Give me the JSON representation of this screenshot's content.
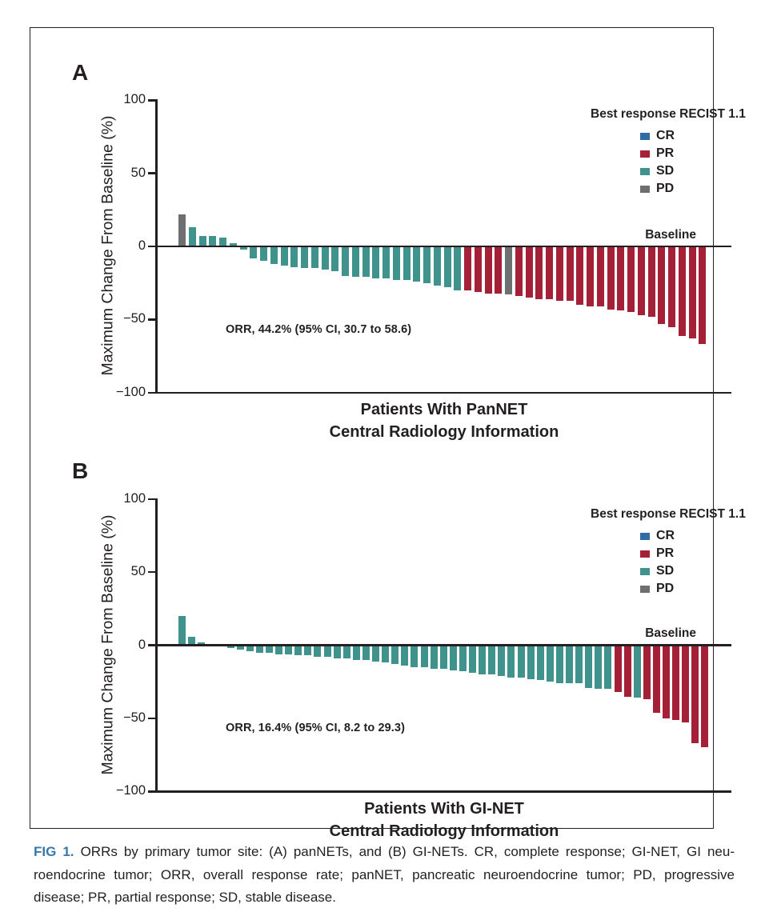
{
  "colors": {
    "CR": "#2E6DA4",
    "PR": "#A32036",
    "SD": "#3F938C",
    "PD": "#6E6F71",
    "axis": "#231F20",
    "fig_label_blue": "#3878A8"
  },
  "chart_data": [
    {
      "type": "bar",
      "subtype": "waterfall",
      "panel_label": "A",
      "ylabel": "Maximum Change From Baseline (%)",
      "title_lines": [
        "Patients With PanNET",
        "Central Radiology Information"
      ],
      "ylim": [
        -100,
        100
      ],
      "y_ticks": [
        100,
        50,
        0,
        -50,
        -100
      ],
      "y_tick_labels": [
        "100",
        "50",
        "0",
        "−50",
        "−100"
      ],
      "baseline_annotation": "Baseline",
      "orr_annotation": "ORR, 44.2% (95% CI, 30.7 to 58.6)",
      "legend": {
        "title": "Best response RECIST 1.1",
        "items": [
          "CR",
          "PR",
          "SD",
          "PD"
        ]
      },
      "values": [
        22,
        13,
        7,
        7,
        6,
        2,
        -2,
        -8,
        -10,
        -12,
        -13,
        -14,
        -15,
        -15,
        -16,
        -17,
        -20,
        -21,
        -21,
        -22,
        -22,
        -23,
        -23,
        -24,
        -25,
        -27,
        -28,
        -30,
        -30,
        -31,
        -32,
        -32,
        -33,
        -34,
        -35,
        -36,
        -36,
        -37,
        -37,
        -40,
        -41,
        -41,
        -43,
        -44,
        -45,
        -47,
        -48,
        -53,
        -55,
        -61,
        -63,
        -67
      ],
      "responses": [
        "PD",
        "SD",
        "SD",
        "SD",
        "SD",
        "SD",
        "SD",
        "SD",
        "SD",
        "SD",
        "SD",
        "SD",
        "SD",
        "SD",
        "SD",
        "SD",
        "SD",
        "SD",
        "SD",
        "SD",
        "SD",
        "SD",
        "SD",
        "SD",
        "SD",
        "SD",
        "SD",
        "SD",
        "PR",
        "PR",
        "PR",
        "PR",
        "PD",
        "PR",
        "PR",
        "PR",
        "PR",
        "PR",
        "PR",
        "PR",
        "PR",
        "PR",
        "PR",
        "PR",
        "PR",
        "PR",
        "PR",
        "PR",
        "PR",
        "PR",
        "PR",
        "PR"
      ]
    },
    {
      "type": "bar",
      "subtype": "waterfall",
      "panel_label": "B",
      "ylabel": "Maximum Change From Baseline (%)",
      "title_lines": [
        "Patients With GI-NET",
        "Central Radiology Information"
      ],
      "ylim": [
        -100,
        100
      ],
      "y_ticks": [
        100,
        50,
        0,
        -50,
        -100
      ],
      "y_tick_labels": [
        "100",
        "50",
        "0",
        "−50",
        "−100"
      ],
      "baseline_annotation": "Baseline",
      "orr_annotation": "ORR, 16.4% (95% CI, 8.2 to 29.3)",
      "legend": {
        "title": "Best response RECIST 1.1",
        "items": [
          "CR",
          "PR",
          "SD",
          "PD"
        ]
      },
      "values": [
        20,
        6,
        2,
        1,
        -1,
        -2,
        -3,
        -4,
        -5,
        -5,
        -6,
        -6,
        -7,
        -7,
        -8,
        -8,
        -9,
        -9,
        -10,
        -10,
        -11,
        -12,
        -13,
        -14,
        -15,
        -15,
        -16,
        -16,
        -17,
        -18,
        -19,
        -20,
        -20,
        -21,
        -22,
        -22,
        -23,
        -24,
        -25,
        -26,
        -26,
        -26,
        -29,
        -30,
        -30,
        -32,
        -35,
        -36,
        -37,
        -46,
        -50,
        -51,
        -53,
        -67,
        -70
      ],
      "responses": [
        "SD",
        "SD",
        "SD",
        "SD",
        "SD",
        "SD",
        "SD",
        "SD",
        "SD",
        "SD",
        "SD",
        "SD",
        "SD",
        "SD",
        "SD",
        "SD",
        "SD",
        "SD",
        "SD",
        "SD",
        "SD",
        "SD",
        "SD",
        "SD",
        "SD",
        "SD",
        "SD",
        "SD",
        "SD",
        "SD",
        "SD",
        "SD",
        "SD",
        "SD",
        "SD",
        "SD",
        "SD",
        "SD",
        "SD",
        "SD",
        "SD",
        "SD",
        "SD",
        "SD",
        "SD",
        "PR",
        "PR",
        "SD",
        "PR",
        "PR",
        "PR",
        "PR",
        "PR",
        "PR",
        "PR"
      ]
    }
  ],
  "caption": {
    "fig_label": "FIG 1.",
    "line1": "ORRs by primary tumor site: (A) panNETs, and (B) GI-NETs. CR, complete response; GI-NET, GI neu-",
    "line2": "roendocrine tumor; ORR, overall response rate; panNET, pancreatic neuroendocrine tumor; PD, progressive",
    "line3": "disease; PR, partial response; SD, stable disease."
  }
}
